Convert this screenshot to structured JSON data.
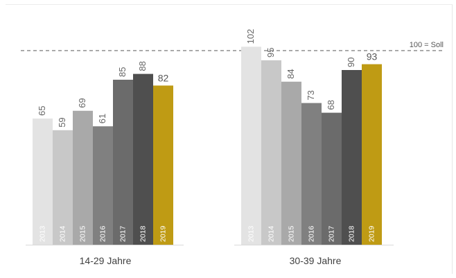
{
  "chart_data": {
    "type": "bar",
    "groups": [
      "14-29 Jahre",
      "30-39 Jahre"
    ],
    "years": [
      "2013",
      "2014",
      "2015",
      "2016",
      "2017",
      "2018",
      "2019"
    ],
    "series": [
      {
        "values": [
          65,
          59,
          69,
          61,
          85,
          88,
          82
        ]
      },
      {
        "values": [
          102,
          95,
          84,
          73,
          68,
          90,
          93
        ]
      }
    ],
    "value_labels": [
      [
        "65",
        "59",
        "69",
        "61",
        "85",
        "88",
        "82"
      ],
      [
        "102",
        "95",
        "84",
        "73",
        "68",
        "90",
        "93"
      ]
    ],
    "reference_line": {
      "value": 100,
      "label": "100 = Soll"
    },
    "colors": [
      "#e3e3e3",
      "#c8c8c8",
      "#a9a9a9",
      "#808080",
      "#6b6b6b",
      "#4f4f4f",
      "#bf9b14"
    ],
    "highlight_color": "#bf9b14",
    "ylim": [
      0,
      110
    ],
    "grid": false,
    "legend": "none"
  }
}
